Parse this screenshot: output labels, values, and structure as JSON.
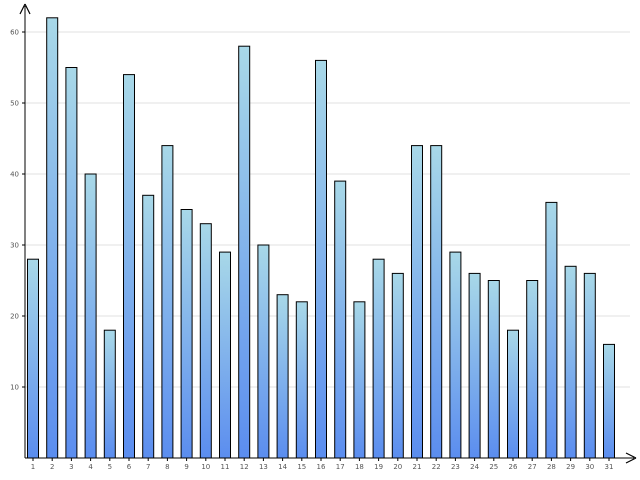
{
  "chart_data": {
    "type": "bar",
    "title": "",
    "xlabel": "",
    "ylabel": "",
    "categories": [
      "1",
      "2",
      "3",
      "4",
      "5",
      "6",
      "7",
      "8",
      "9",
      "10",
      "11",
      "12",
      "13",
      "14",
      "15",
      "16",
      "17",
      "18",
      "19",
      "20",
      "21",
      "22",
      "23",
      "24",
      "25",
      "26",
      "27",
      "28",
      "29",
      "30",
      "31"
    ],
    "values": [
      28,
      62,
      55,
      40,
      18,
      54,
      37,
      44,
      35,
      33,
      29,
      58,
      30,
      23,
      22,
      56,
      39,
      22,
      28,
      26,
      44,
      44,
      29,
      26,
      25,
      18,
      25,
      36,
      27,
      26,
      16
    ],
    "yticks": [
      10,
      20,
      30,
      40,
      50,
      60
    ],
    "ylim": [
      0,
      64
    ],
    "grid": true,
    "legend": "none",
    "colors": {
      "bar_top": "#a8d8e8",
      "bar_bottom": "#5b8def",
      "outline": "#000000",
      "grid": "#e0e0e0"
    }
  }
}
